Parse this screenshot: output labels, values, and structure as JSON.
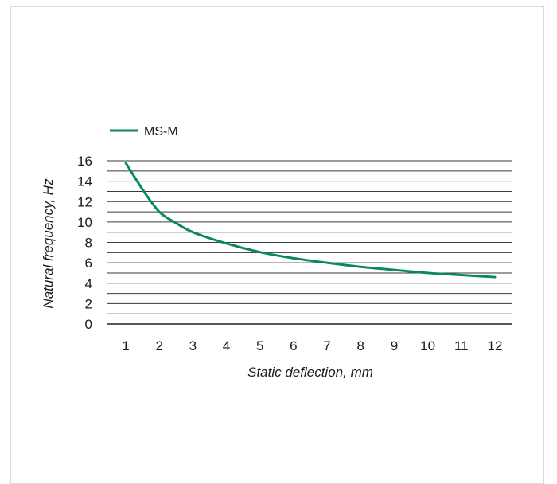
{
  "colors": {
    "series": "#0a8a5c",
    "grid": "#3a3a3a",
    "border": "#d9d9d9"
  },
  "chart_data": {
    "type": "line",
    "xlabel": "Static deflection, mm",
    "ylabel": "Natural frequency, Hz",
    "xlim": [
      1,
      12
    ],
    "ylim": [
      0,
      16
    ],
    "x_ticks": [
      1,
      2,
      3,
      4,
      5,
      6,
      7,
      8,
      9,
      10,
      11,
      12
    ],
    "y_ticks": [
      0,
      2,
      4,
      6,
      8,
      10,
      12,
      14,
      16
    ],
    "y_minor_gridlines": true,
    "grid": true,
    "legend_position": "top-left",
    "series": [
      {
        "name": "MS-M",
        "x": [
          1,
          1.5,
          2,
          2.5,
          3,
          4,
          5,
          6,
          7,
          8,
          9,
          10,
          11,
          12
        ],
        "y": [
          15.8,
          13.2,
          11.0,
          9.9,
          9.0,
          7.9,
          7.05,
          6.45,
          6.0,
          5.6,
          5.3,
          5.0,
          4.8,
          4.6
        ]
      }
    ]
  }
}
